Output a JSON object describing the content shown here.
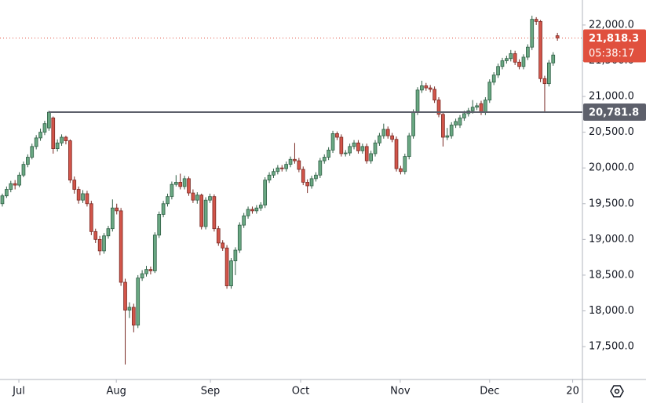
{
  "chart_data": {
    "type": "candlestick",
    "up_color": "#6aa883",
    "up_edge": "#2f5f45",
    "down_color": "#d2554a",
    "down_edge": "#7a2a24",
    "ylim": [
      17040,
      22350
    ],
    "yticks": [
      {
        "value": 17500,
        "label": "17,500.0"
      },
      {
        "value": 18000,
        "label": "18,000.0"
      },
      {
        "value": 18500,
        "label": "18,500.0"
      },
      {
        "value": 19000,
        "label": "19,000.0"
      },
      {
        "value": 19500,
        "label": "19,500.0"
      },
      {
        "value": 20000,
        "label": "20,000.0"
      },
      {
        "value": 20500,
        "label": "20,500.0"
      },
      {
        "value": 21000,
        "label": "21,000.0"
      },
      {
        "value": 21500,
        "label": "21,500.0"
      },
      {
        "value": 22000,
        "label": "22,000.0"
      }
    ],
    "xlim": [
      -0.55,
      136.9
    ],
    "xticks": [
      {
        "value": 3.9,
        "label": "Jul"
      },
      {
        "value": 26.9,
        "label": "Aug"
      },
      {
        "value": 49.1,
        "label": "Sep"
      },
      {
        "value": 70.4,
        "label": "Oct"
      },
      {
        "value": 93.9,
        "label": "Nov"
      },
      {
        "value": 115,
        "label": "Dec"
      },
      {
        "value": 134.6,
        "label": "20"
      }
    ],
    "level": {
      "value": 20781.8,
      "label": "20,781.8",
      "color": "#5d606b"
    },
    "last_price": {
      "value": 21818.3,
      "label": "21,818.3",
      "countdown": "05:38:17",
      "color": "#e0503e"
    },
    "ohlc": [
      [
        19500,
        19640,
        19460,
        19610
      ],
      [
        19610,
        19740,
        19580,
        19700
      ],
      [
        19700,
        19820,
        19660,
        19780
      ],
      [
        19780,
        19830,
        19700,
        19760
      ],
      [
        19760,
        19940,
        19730,
        19900
      ],
      [
        19900,
        20090,
        19870,
        20050
      ],
      [
        20050,
        20190,
        20010,
        20150
      ],
      [
        20150,
        20340,
        20120,
        20300
      ],
      [
        20300,
        20460,
        20260,
        20420
      ],
      [
        20420,
        20550,
        20380,
        20500
      ],
      [
        20500,
        20660,
        20460,
        20620
      ],
      [
        20560,
        20800,
        20520,
        20780
      ],
      [
        20700,
        20720,
        20200,
        20270
      ],
      [
        20270,
        20400,
        20230,
        20350
      ],
      [
        20350,
        20470,
        20310,
        20430
      ],
      [
        20430,
        20450,
        20330,
        20380
      ],
      [
        20380,
        20400,
        19790,
        19830
      ],
      [
        19830,
        19880,
        19640,
        19700
      ],
      [
        19700,
        19740,
        19500,
        19550
      ],
      [
        19550,
        19690,
        19510,
        19640
      ],
      [
        19640,
        19680,
        19460,
        19500
      ],
      [
        19500,
        19540,
        19060,
        19110
      ],
      [
        19110,
        19150,
        18950,
        19000
      ],
      [
        19000,
        19050,
        18780,
        18840
      ],
      [
        18840,
        19090,
        18800,
        19050
      ],
      [
        19050,
        19190,
        19010,
        19150
      ],
      [
        19150,
        19560,
        19110,
        19440
      ],
      [
        19440,
        19500,
        19350,
        19400
      ],
      [
        19400,
        19440,
        18350,
        18400
      ],
      [
        18400,
        18450,
        17250,
        18010
      ],
      [
        18010,
        18120,
        17900,
        18050
      ],
      [
        18050,
        18100,
        17700,
        17800
      ],
      [
        17800,
        18500,
        17760,
        18460
      ],
      [
        18460,
        18570,
        18420,
        18520
      ],
      [
        18520,
        18630,
        18480,
        18580
      ],
      [
        18580,
        18620,
        18510,
        18560
      ],
      [
        18560,
        19100,
        18530,
        19060
      ],
      [
        19060,
        19390,
        19020,
        19350
      ],
      [
        19350,
        19540,
        19310,
        19500
      ],
      [
        19500,
        19640,
        19460,
        19600
      ],
      [
        19600,
        19810,
        19560,
        19770
      ],
      [
        19770,
        19900,
        19740,
        19800
      ],
      [
        19800,
        19920,
        19700,
        19740
      ],
      [
        19740,
        19890,
        19700,
        19850
      ],
      [
        19850,
        19880,
        19610,
        19650
      ],
      [
        19650,
        19700,
        19510,
        19550
      ],
      [
        19550,
        19660,
        19500,
        19620
      ],
      [
        19620,
        19640,
        19140,
        19180
      ],
      [
        19180,
        19590,
        19140,
        19550
      ],
      [
        19550,
        19640,
        19510,
        19600
      ],
      [
        19600,
        19630,
        19110,
        19150
      ],
      [
        19150,
        19190,
        18910,
        18950
      ],
      [
        18950,
        18990,
        18840,
        18880
      ],
      [
        18880,
        18920,
        18310,
        18350
      ],
      [
        18350,
        18740,
        18310,
        18700
      ],
      [
        18700,
        18890,
        18500,
        18850
      ],
      [
        18850,
        19240,
        18810,
        19200
      ],
      [
        19200,
        19370,
        19160,
        19330
      ],
      [
        19330,
        19460,
        19290,
        19420
      ],
      [
        19420,
        19460,
        19360,
        19400
      ],
      [
        19400,
        19480,
        19360,
        19440
      ],
      [
        19440,
        19520,
        19400,
        19480
      ],
      [
        19480,
        19870,
        19440,
        19830
      ],
      [
        19830,
        19940,
        19790,
        19900
      ],
      [
        19900,
        19990,
        19860,
        19950
      ],
      [
        19950,
        20040,
        19910,
        20000
      ],
      [
        20000,
        20040,
        19950,
        19990
      ],
      [
        19990,
        20090,
        19950,
        20050
      ],
      [
        20050,
        20160,
        20010,
        20120
      ],
      [
        20120,
        20350,
        20060,
        20100
      ],
      [
        20100,
        20140,
        19940,
        19980
      ],
      [
        19980,
        20020,
        19760,
        19800
      ],
      [
        19800,
        19840,
        19650,
        19750
      ],
      [
        19750,
        19890,
        19710,
        19850
      ],
      [
        19850,
        19940,
        19810,
        19900
      ],
      [
        19900,
        20140,
        19860,
        20100
      ],
      [
        20100,
        20190,
        20060,
        20150
      ],
      [
        20150,
        20290,
        20110,
        20250
      ],
      [
        20250,
        20520,
        20210,
        20480
      ],
      [
        20480,
        20510,
        20390,
        20430
      ],
      [
        20430,
        20470,
        20160,
        20200
      ],
      [
        20200,
        20250,
        20160,
        20210
      ],
      [
        20210,
        20340,
        20170,
        20300
      ],
      [
        20300,
        20390,
        20260,
        20350
      ],
      [
        20350,
        20390,
        20200,
        20240
      ],
      [
        20240,
        20340,
        20200,
        20300
      ],
      [
        20300,
        20340,
        20060,
        20100
      ],
      [
        20100,
        20240,
        20060,
        20200
      ],
      [
        20200,
        20390,
        20160,
        20350
      ],
      [
        20350,
        20490,
        20310,
        20450
      ],
      [
        20450,
        20620,
        20410,
        20540
      ],
      [
        20540,
        20580,
        20410,
        20450
      ],
      [
        20450,
        20490,
        20360,
        20400
      ],
      [
        20400,
        20440,
        19950,
        19990
      ],
      [
        19990,
        20030,
        19910,
        19950
      ],
      [
        19950,
        20200,
        19910,
        20160
      ],
      [
        20160,
        20490,
        20120,
        20450
      ],
      [
        20450,
        20820,
        20410,
        20780
      ],
      [
        20780,
        21130,
        20740,
        21090
      ],
      [
        21090,
        21220,
        21050,
        21150
      ],
      [
        21150,
        21190,
        21080,
        21120
      ],
      [
        21120,
        21160,
        21060,
        21100
      ],
      [
        21100,
        21140,
        20910,
        20950
      ],
      [
        20950,
        20990,
        20710,
        20750
      ],
      [
        20750,
        20790,
        20300,
        20430
      ],
      [
        20430,
        20560,
        20390,
        20450
      ],
      [
        20450,
        20640,
        20410,
        20600
      ],
      [
        20600,
        20690,
        20560,
        20650
      ],
      [
        20600,
        20740,
        20560,
        20700
      ],
      [
        20700,
        20800,
        20660,
        20760
      ],
      [
        20760,
        20840,
        20720,
        20800
      ],
      [
        20800,
        20950,
        20760,
        20850
      ],
      [
        20850,
        20910,
        20810,
        20870
      ],
      [
        20900,
        20940,
        20740,
        20780
      ],
      [
        20780,
        20990,
        20740,
        20950
      ],
      [
        20950,
        21240,
        20910,
        21200
      ],
      [
        21200,
        21340,
        21160,
        21300
      ],
      [
        21300,
        21460,
        21260,
        21420
      ],
      [
        21420,
        21540,
        21380,
        21500
      ],
      [
        21500,
        21570,
        21460,
        21530
      ],
      [
        21530,
        21650,
        21490,
        21600
      ],
      [
        21600,
        21640,
        21440,
        21480
      ],
      [
        21480,
        21520,
        21380,
        21420
      ],
      [
        21420,
        21590,
        21380,
        21550
      ],
      [
        21550,
        21730,
        21510,
        21690
      ],
      [
        21690,
        22130,
        21650,
        22080
      ],
      [
        22080,
        22110,
        22000,
        22050
      ],
      [
        22050,
        22070,
        21200,
        21250
      ],
      [
        21250,
        21290,
        20780,
        21180
      ],
      [
        21180,
        21510,
        21140,
        21470
      ],
      [
        21470,
        21620,
        21430,
        21580
      ],
      [
        21850,
        21890,
        21780,
        21818.3
      ]
    ]
  }
}
